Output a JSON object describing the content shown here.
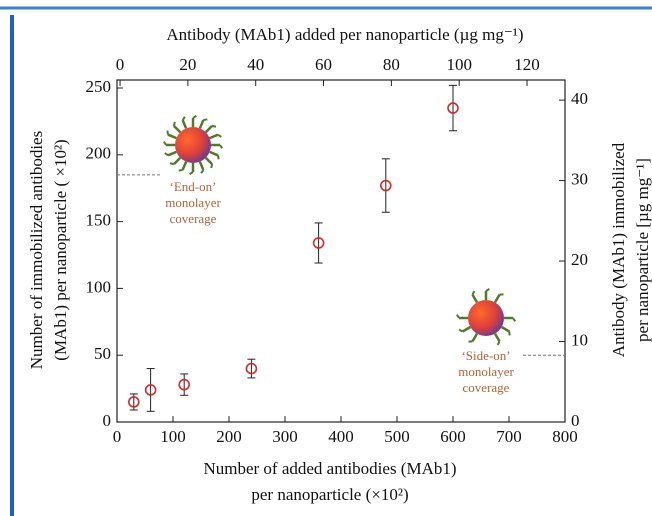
{
  "chart_data": {
    "type": "scatter",
    "xlabel": [
      "Number of added antibodies (MAb1)",
      "per nanoparticle (×10²)"
    ],
    "ylabel": [
      "Number of immobilized antibodies",
      "(MAb1) per nanoparticle ( ×10²)"
    ],
    "x2label": "Antibody (MAb1) added per nanoparticle (µg mg⁻¹)",
    "y2label": [
      "Antibody (MAb1) immobilized",
      "per nanoparticle [µg mg⁻¹]"
    ],
    "x": [
      30,
      60,
      120,
      240,
      360,
      480,
      600
    ],
    "values": [
      15,
      24,
      28,
      40,
      134,
      177,
      235
    ],
    "errors": [
      6,
      16,
      8,
      7,
      15,
      20,
      17
    ],
    "color": "#d42a2a",
    "xlim": [
      0,
      800
    ],
    "xticks": [
      0,
      100,
      200,
      300,
      400,
      500,
      600,
      700,
      800
    ],
    "ylim": [
      0,
      256
    ],
    "yticks": [
      0,
      50,
      100,
      150,
      200,
      250
    ],
    "x2lim": [
      -0.9,
      131.2
    ],
    "x2ticks": [
      0,
      20,
      40,
      60,
      80,
      100,
      120
    ],
    "y2lim": [
      0,
      42.5
    ],
    "y2ticks": [
      0,
      10,
      20,
      30,
      40
    ],
    "reference_lines": [
      {
        "axis": "y",
        "value": 185,
        "side": "left"
      },
      {
        "axis": "y2",
        "value": 8.3,
        "side": "right"
      }
    ],
    "annotations": [
      [
        "‘End-on’",
        "monolayer",
        "coverage"
      ],
      [
        "‘Side-on’",
        "monolayer",
        "coverage"
      ]
    ]
  }
}
